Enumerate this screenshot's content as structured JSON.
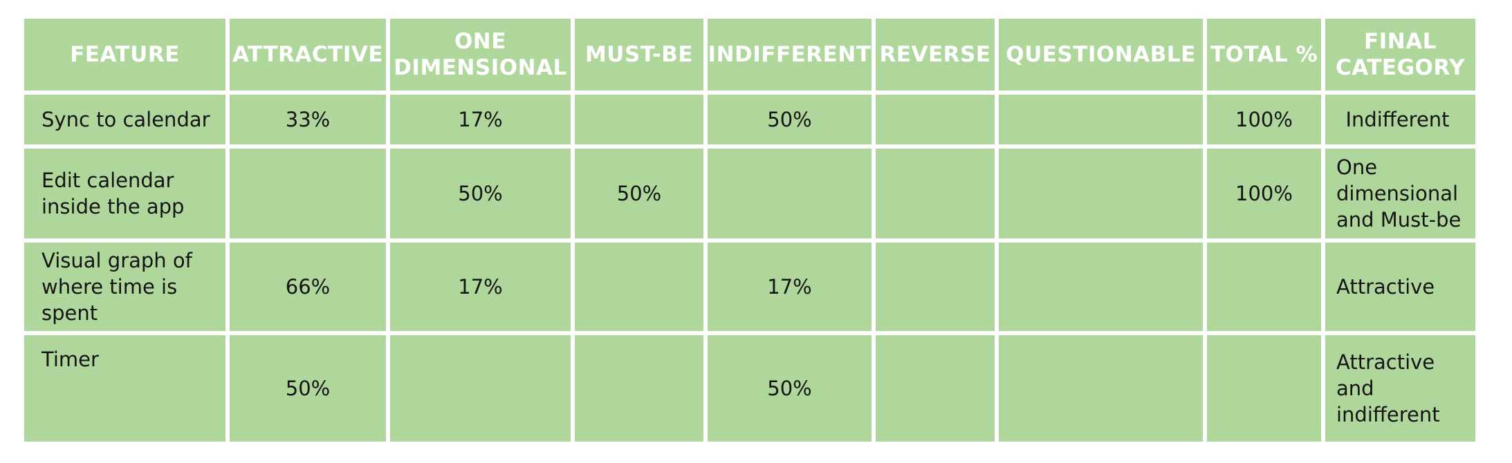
{
  "table": {
    "headers": [
      "FEATURE",
      "ATTRACTIVE",
      "ONE DIMENSIONAL",
      "MUST-BE",
      "INDIFFERENT",
      "REVERSE",
      "QUESTIONABLE",
      "TOTAL %",
      "FINAL CATEGORY"
    ],
    "rows": [
      [
        "Sync to calendar",
        "33%",
        "17%",
        "",
        "50%",
        "",
        "",
        "100%",
        "Indifferent"
      ],
      [
        "Edit calendar inside the app",
        "",
        "50%",
        "50%",
        "",
        "",
        "",
        "100%",
        "One dimensional and Must-be"
      ],
      [
        "Visual graph of where time is spent",
        "66%",
        "17%",
        "",
        "17%",
        "",
        "",
        "",
        "Attractive"
      ],
      [
        "Timer",
        "50%",
        "",
        "",
        "50%",
        "",
        "",
        "",
        "Attractive and indifferent"
      ]
    ]
  },
  "colors": {
    "cell_background": "#b0d79b",
    "header_text": "#ffffff",
    "body_text": "#141414",
    "grid_lines": "#ffffff"
  }
}
